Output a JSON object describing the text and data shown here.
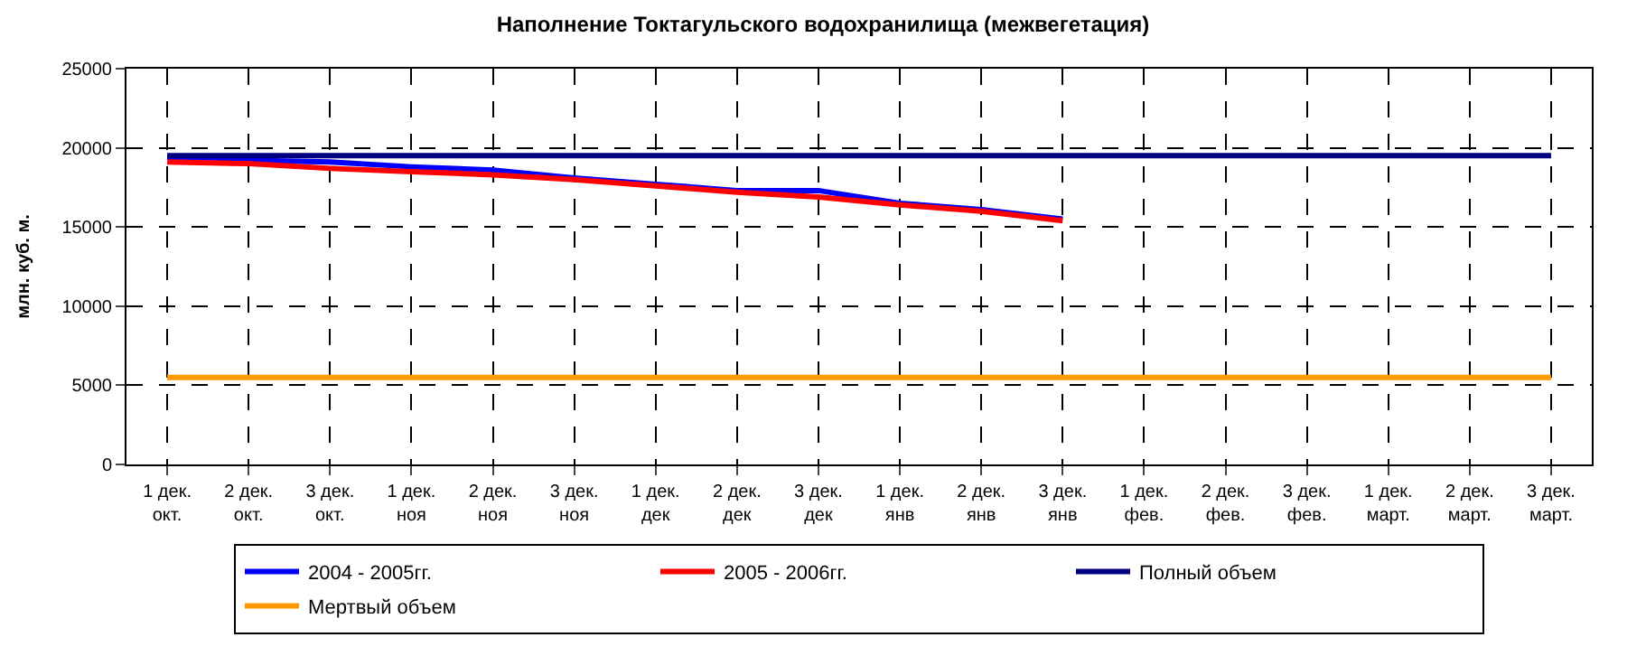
{
  "chart_data": {
    "type": "line",
    "title": "Наполнение Токтагульского водохранилища (межвегетация)",
    "ylabel": "млн. куб. м.",
    "categories": [
      "1 дек. окт.",
      "2 дек. окт.",
      "3 дек. окт.",
      "1 дек. ноя",
      "2 дек. ноя",
      "3 дек. ноя",
      "1 дек. дек",
      "2 дек. дек",
      "3 дек. дек",
      "1 дек. янв",
      "2 дек. янв",
      "3 дек. янв",
      "1 дек. фев.",
      "2 дек. фев.",
      "3 дек. фев.",
      "1 дек. март.",
      "2 дек. март.",
      "3 дек. март."
    ],
    "series": [
      {
        "name": "2004 - 2005гг.",
        "color": "#0000ff",
        "values": [
          19400,
          19200,
          19100,
          18800,
          18600,
          18100,
          17700,
          17300,
          17300,
          16500,
          16100,
          15500,
          null,
          null,
          null,
          null,
          null,
          null
        ]
      },
      {
        "name": "2005 - 2006гг.",
        "color": "#ff0000",
        "values": [
          19100,
          19000,
          18700,
          18500,
          18300,
          18000,
          17600,
          17200,
          16900,
          16400,
          16000,
          15400,
          null,
          null,
          null,
          null,
          null,
          null
        ]
      },
      {
        "name": "Полный объем",
        "color": "#000080",
        "values": [
          19500,
          19500,
          19500,
          19500,
          19500,
          19500,
          19500,
          19500,
          19500,
          19500,
          19500,
          19500,
          19500,
          19500,
          19500,
          19500,
          19500,
          19500
        ]
      },
      {
        "name": "Мертвый объем",
        "color": "#ff9900",
        "values": [
          5500,
          5500,
          5500,
          5500,
          5500,
          5500,
          5500,
          5500,
          5500,
          5500,
          5500,
          5500,
          5500,
          5500,
          5500,
          5500,
          5500,
          5500
        ]
      }
    ],
    "ylim": [
      0,
      25000
    ],
    "yticks": [
      0,
      5000,
      10000,
      15000,
      20000,
      25000
    ],
    "grid": true,
    "legend": "bottom",
    "marker": "none",
    "line_style": "solid"
  }
}
